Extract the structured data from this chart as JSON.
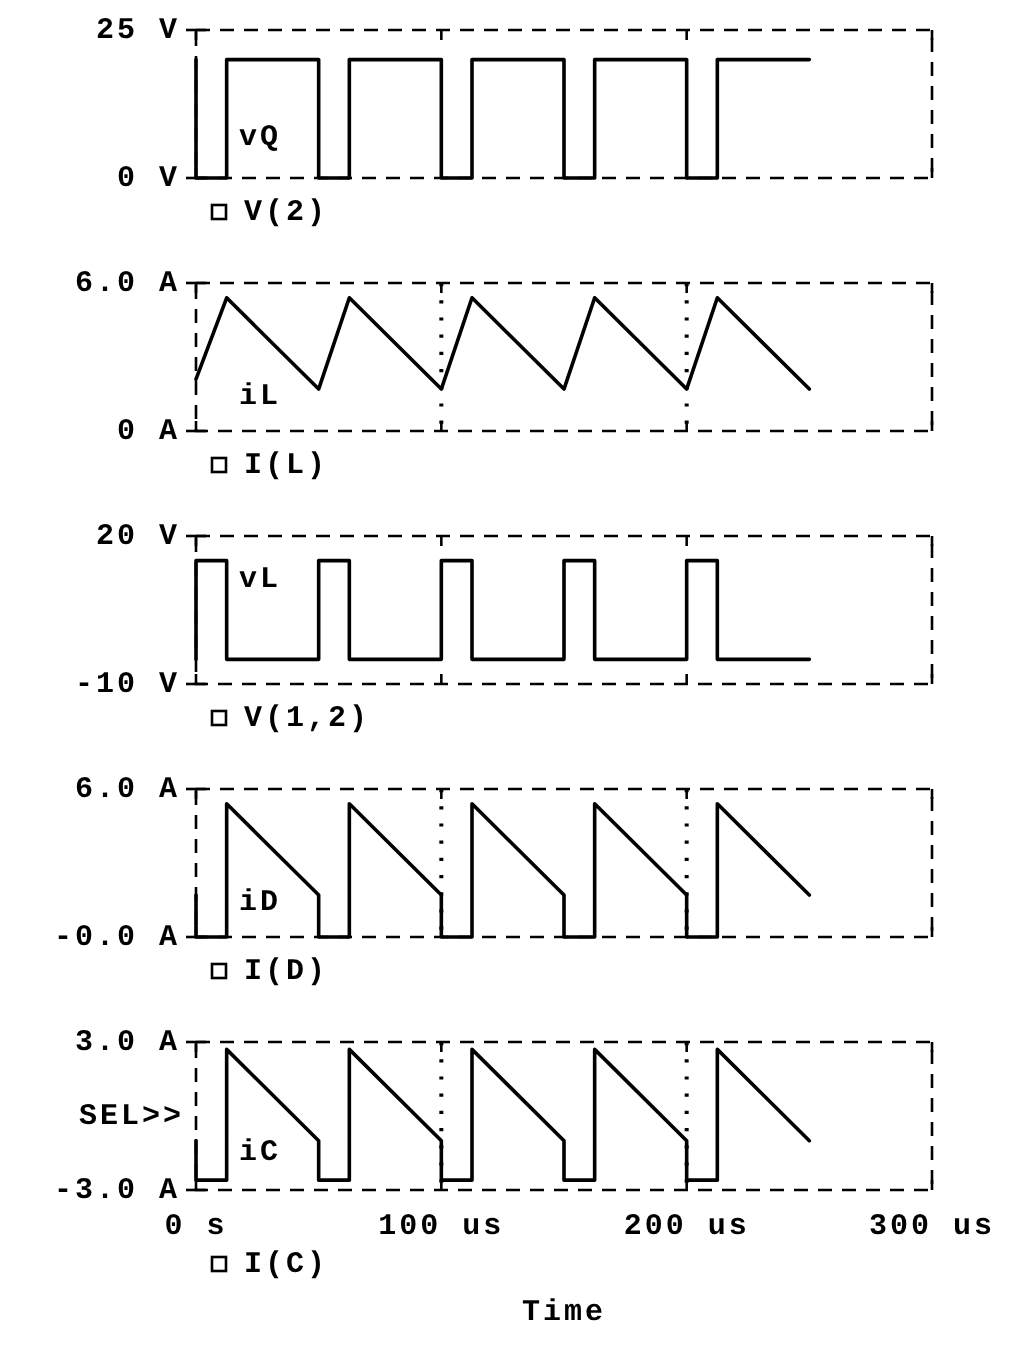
{
  "chart_data": [
    {
      "type": "line",
      "series": [
        {
          "name": "V(2)",
          "color": "#000000",
          "x": [
            0,
            0,
            12.5,
            12.5,
            50,
            50,
            62.5,
            62.5,
            100,
            100,
            112.5,
            112.5,
            150,
            150,
            162.5,
            162.5,
            200,
            200,
            212.5,
            212.5,
            250
          ],
          "values": [
            20,
            0,
            0,
            20,
            20,
            0,
            0,
            20,
            20,
            0,
            0,
            20,
            20,
            0,
            0,
            20,
            20,
            0,
            0,
            20,
            20
          ]
        }
      ],
      "xlim": [
        0,
        300
      ],
      "xticks": [
        {
          "value": 0,
          "label": null
        },
        {
          "value": 100,
          "label": null
        },
        {
          "value": 200,
          "label": null
        },
        {
          "value": 300,
          "label": null
        }
      ],
      "ylim": [
        0,
        25
      ],
      "yticks": [
        {
          "value": 0,
          "label": "0 V"
        },
        {
          "value": 25,
          "label": "25 V"
        }
      ],
      "tick_labels": "y",
      "legend": "bottom left",
      "annotations": [
        "vQ"
      ]
    },
    {
      "type": "line",
      "series": [
        {
          "name": "I(L)",
          "color": "#000000",
          "x": [
            0,
            12.5,
            50,
            62.5,
            100,
            112.5,
            150,
            162.5,
            200,
            212.5,
            250
          ],
          "values": [
            2.1,
            5.4,
            1.7,
            5.4,
            1.7,
            5.4,
            1.7,
            5.4,
            1.7,
            5.4,
            1.7
          ]
        }
      ],
      "xlim": [
        0,
        300
      ],
      "xticks": [
        {
          "value": 0,
          "label": null
        },
        {
          "value": 100,
          "label": null
        },
        {
          "value": 200,
          "label": null
        },
        {
          "value": 300,
          "label": null
        }
      ],
      "ylim": [
        0,
        6
      ],
      "yticks": [
        {
          "value": 0,
          "label": "0 A"
        },
        {
          "value": 6,
          "label": "6.0 A"
        }
      ],
      "tick_labels": "y",
      "grid": "x",
      "legend": "bottom left",
      "annotations": [
        "iL"
      ]
    },
    {
      "type": "line",
      "series": [
        {
          "name": "V(1,2)",
          "color": "#000000",
          "x": [
            0,
            0,
            12.5,
            12.5,
            50,
            50,
            62.5,
            62.5,
            100,
            100,
            112.5,
            112.5,
            150,
            150,
            162.5,
            162.5,
            200,
            200,
            212.5,
            212.5,
            250
          ],
          "values": [
            -5,
            15,
            15,
            -5,
            -5,
            15,
            15,
            -5,
            -5,
            15,
            15,
            -5,
            -5,
            15,
            15,
            -5,
            -5,
            15,
            15,
            -5,
            -5
          ]
        }
      ],
      "xlim": [
        0,
        300
      ],
      "xticks": [
        {
          "value": 0,
          "label": null
        },
        {
          "value": 100,
          "label": null
        },
        {
          "value": 200,
          "label": null
        },
        {
          "value": 300,
          "label": null
        }
      ],
      "ylim": [
        -10,
        20
      ],
      "yticks": [
        {
          "value": -10,
          "label": "-10 V"
        },
        {
          "value": 20,
          "label": "20 V"
        }
      ],
      "tick_labels": "y",
      "legend": "bottom left",
      "annotations": [
        "vL"
      ]
    },
    {
      "type": "line",
      "series": [
        {
          "name": "I(D)",
          "color": "#000000",
          "x": [
            0,
            0,
            12.5,
            12.5,
            50,
            50,
            62.5,
            62.5,
            100,
            100,
            112.5,
            112.5,
            150,
            150,
            162.5,
            162.5,
            200,
            200,
            212.5,
            212.5,
            250
          ],
          "values": [
            1.7,
            0,
            0,
            5.4,
            1.7,
            0,
            0,
            5.4,
            1.7,
            0,
            0,
            5.4,
            1.7,
            0,
            0,
            5.4,
            1.7,
            0,
            0,
            5.4,
            1.7
          ]
        }
      ],
      "xlim": [
        0,
        300
      ],
      "xticks": [
        {
          "value": 0,
          "label": null
        },
        {
          "value": 100,
          "label": null
        },
        {
          "value": 200,
          "label": null
        },
        {
          "value": 300,
          "label": null
        }
      ],
      "ylim": [
        0,
        6
      ],
      "yticks": [
        {
          "value": 0,
          "label": "-0.0 A"
        },
        {
          "value": 6,
          "label": "6.0 A"
        }
      ],
      "tick_labels": "y",
      "grid": "x",
      "legend": "bottom left",
      "annotations": [
        "iD"
      ]
    },
    {
      "type": "line",
      "series": [
        {
          "name": "I(C)",
          "color": "#000000",
          "x": [
            0,
            0,
            12.5,
            12.5,
            50,
            50,
            62.5,
            62.5,
            100,
            100,
            112.5,
            112.5,
            150,
            150,
            162.5,
            162.5,
            200,
            200,
            212.5,
            212.5,
            250
          ],
          "values": [
            -1.0,
            -2.6,
            -2.6,
            2.7,
            -1.0,
            -2.6,
            -2.6,
            2.7,
            -1.0,
            -2.6,
            -2.6,
            2.7,
            -1.0,
            -2.6,
            -2.6,
            2.7,
            -1.0,
            -2.6,
            -2.6,
            2.7,
            -1.0
          ]
        }
      ],
      "xlim": [
        0,
        300
      ],
      "xticks": [
        {
          "value": 0,
          "label": "0 s"
        },
        {
          "value": 100,
          "label": "100 us"
        },
        {
          "value": 200,
          "label": "200 us"
        },
        {
          "value": 300,
          "label": "300 us"
        }
      ],
      "ylim": [
        -3,
        3
      ],
      "yticks": [
        {
          "value": -3,
          "label": "-3.0 A"
        },
        {
          "value": 3,
          "label": "3.0 A"
        }
      ],
      "grid": "x",
      "legend": "bottom left",
      "xlabel": "Time",
      "annotations": [
        "SEL>>",
        "iC"
      ]
    }
  ]
}
